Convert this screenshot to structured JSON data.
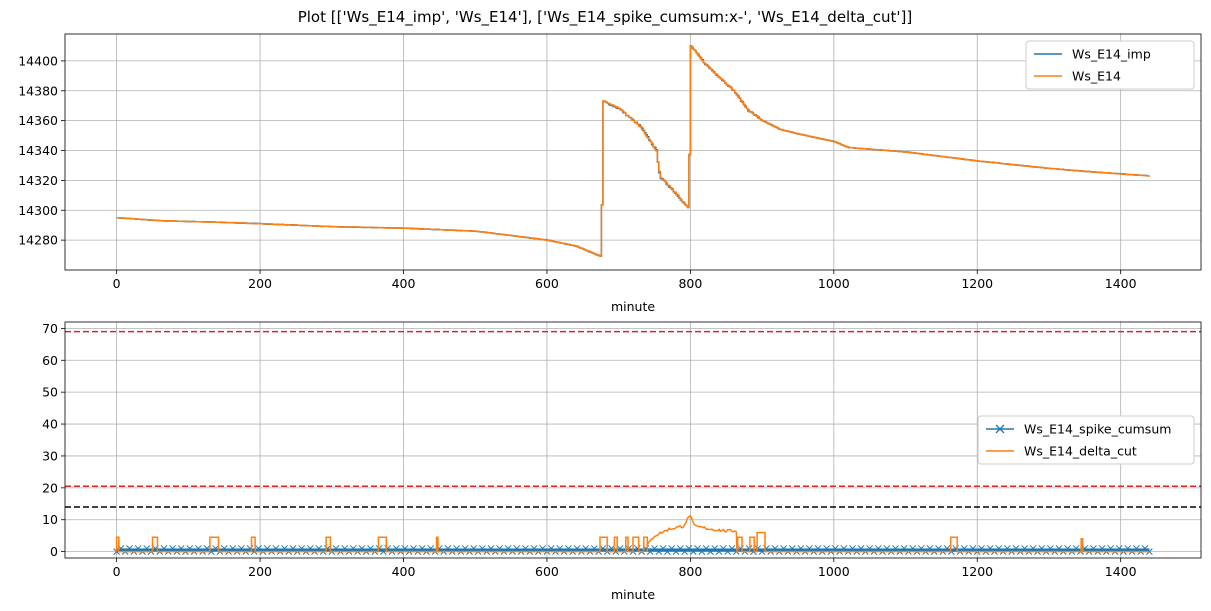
{
  "title": "Plot [['Ws_E14_imp', 'Ws_E14'], ['Ws_E14_spike_cumsum:x-', 'Ws_E14_delta_cut']]",
  "chart_data": [
    {
      "type": "line",
      "xlabel": "minute",
      "ylabel": "",
      "xlim": [
        -72,
        1512
      ],
      "ylim": [
        14260,
        14418
      ],
      "xticks": [
        0,
        200,
        400,
        600,
        800,
        1000,
        1200,
        1400
      ],
      "yticks": [
        14280,
        14300,
        14320,
        14340,
        14360,
        14380,
        14400
      ],
      "grid": true,
      "legend": "top-right",
      "series": [
        {
          "name": "Ws_E14_imp",
          "color": "#1f77b4",
          "points": [
            [
              0,
              14295
            ],
            [
              60,
              14293
            ],
            [
              140,
              14292
            ],
            [
              200,
              14291
            ],
            [
              300,
              14289
            ],
            [
              400,
              14288
            ],
            [
              500,
              14286
            ],
            [
              550,
              14283
            ],
            [
              600,
              14280
            ],
            [
              640,
              14276
            ],
            [
              670,
              14270
            ],
            [
              675,
              14269
            ],
            [
              678,
              14373
            ],
            [
              700,
              14368
            ],
            [
              730,
              14356
            ],
            [
              752,
              14340
            ],
            [
              757,
              14322
            ],
            [
              770,
              14316
            ],
            [
              785,
              14308
            ],
            [
              797,
              14301
            ],
            [
              800,
              14410
            ],
            [
              820,
              14398
            ],
            [
              860,
              14380
            ],
            [
              880,
              14367
            ],
            [
              900,
              14360
            ],
            [
              925,
              14354
            ],
            [
              960,
              14350
            ],
            [
              1000,
              14346
            ],
            [
              1020,
              14342
            ],
            [
              1100,
              14339
            ],
            [
              1200,
              14333
            ],
            [
              1300,
              14328
            ],
            [
              1350,
              14326
            ],
            [
              1440,
              14323
            ]
          ]
        },
        {
          "name": "Ws_E14",
          "color": "#ff7f0e",
          "points": [
            [
              0,
              14295
            ],
            [
              60,
              14293
            ],
            [
              140,
              14292
            ],
            [
              200,
              14291
            ],
            [
              300,
              14289
            ],
            [
              400,
              14288
            ],
            [
              500,
              14286
            ],
            [
              550,
              14283
            ],
            [
              600,
              14280
            ],
            [
              640,
              14276
            ],
            [
              670,
              14270
            ],
            [
              675,
              14269
            ],
            [
              678,
              14373
            ],
            [
              700,
              14368
            ],
            [
              730,
              14356
            ],
            [
              752,
              14340
            ],
            [
              757,
              14322
            ],
            [
              770,
              14316
            ],
            [
              785,
              14308
            ],
            [
              797,
              14301
            ],
            [
              800,
              14410
            ],
            [
              820,
              14398
            ],
            [
              860,
              14380
            ],
            [
              880,
              14367
            ],
            [
              900,
              14360
            ],
            [
              925,
              14354
            ],
            [
              960,
              14350
            ],
            [
              1000,
              14346
            ],
            [
              1020,
              14342
            ],
            [
              1100,
              14339
            ],
            [
              1200,
              14333
            ],
            [
              1300,
              14328
            ],
            [
              1350,
              14326
            ],
            [
              1440,
              14323
            ]
          ]
        }
      ]
    },
    {
      "type": "line",
      "xlabel": "minute",
      "ylabel": "",
      "xlim": [
        -72,
        1512
      ],
      "ylim": [
        -2,
        72
      ],
      "xticks": [
        0,
        200,
        400,
        600,
        800,
        1000,
        1200,
        1400
      ],
      "yticks": [
        0,
        10,
        20,
        30,
        40,
        50,
        60,
        70
      ],
      "grid": true,
      "legend": "center-right",
      "hlines": [
        {
          "y": 69,
          "color": "#d62728",
          "style": "dashed"
        },
        {
          "y": 20.5,
          "color": "#d62728",
          "style": "dashed"
        },
        {
          "y": 14,
          "color": "#000000",
          "style": "dashed"
        }
      ],
      "series": [
        {
          "name": "Ws_E14_spike_cumsum",
          "color": "#1f77b4",
          "marker": "x",
          "x_range": [
            0,
            1440
          ],
          "y_band": [
            0,
            1
          ]
        },
        {
          "name": "Ws_E14_delta_cut",
          "color": "#ff7f0e",
          "baseline": 0,
          "pulses": [
            [
              0,
              3,
              4.5
            ],
            [
              50,
              57,
              4.5
            ],
            [
              130,
              142,
              4.5
            ],
            [
              188,
              193,
              4.5
            ],
            [
              292,
              298,
              4.5
            ],
            [
              365,
              376,
              4.5
            ],
            [
              446,
              448,
              4.5
            ],
            [
              674,
              684,
              4.5
            ],
            [
              694,
              698,
              4.5
            ],
            [
              710,
              713,
              4.5
            ],
            [
              720,
              728,
              4.5
            ],
            [
              735,
              740,
              4.5
            ],
            [
              866,
              872,
              4.5
            ],
            [
              883,
              889,
              4.5
            ],
            [
              893,
              904,
              6
            ],
            [
              1163,
              1172,
              4.5
            ],
            [
              1345,
              1347,
              4
            ]
          ],
          "bump": [
            [
              740,
              2
            ],
            [
              750,
              5
            ],
            [
              770,
              7
            ],
            [
              790,
              8
            ],
            [
              800,
              11.5
            ],
            [
              805,
              8
            ],
            [
              830,
              7
            ],
            [
              850,
              6.5
            ],
            [
              865,
              6.5
            ]
          ]
        }
      ]
    }
  ]
}
